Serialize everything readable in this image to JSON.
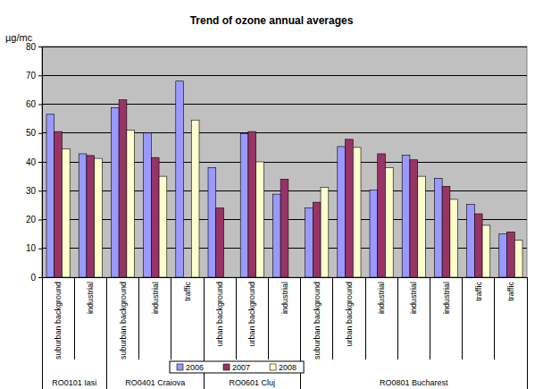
{
  "chart_data": {
    "type": "bar",
    "title": "Trend of ozone annual averages",
    "y_label": "µg/mc",
    "categories": [
      "suburban background",
      "industrial",
      "suburban background",
      "industrial",
      "traffic",
      "urban background",
      "urban background",
      "industrial",
      "suburban background",
      "urban background",
      "industrial",
      "industrial",
      "industrial",
      "traffic",
      "traffic"
    ],
    "groups": [
      {
        "label": "RO0101 Iasi",
        "count": 2
      },
      {
        "label": "RO0401 Craiova",
        "count": 3
      },
      {
        "label": "RO0601 Cluj",
        "count": 3
      },
      {
        "label": "RO0801 Bucharest",
        "count": 7
      }
    ],
    "series": [
      {
        "name": "2006",
        "color": "#9999ff",
        "values": [
          56.5,
          42.8,
          58.8,
          50,
          68,
          38,
          49.8,
          28.8,
          24,
          45.3,
          30.2,
          42.3,
          34.3,
          25.3,
          15
        ]
      },
      {
        "name": "2007",
        "color": "#993366",
        "values": [
          50.5,
          42.2,
          61.5,
          41.5,
          null,
          24,
          50.5,
          34,
          26,
          47.8,
          42.8,
          40.7,
          31.5,
          22,
          15.7
        ]
      },
      {
        "name": "2008",
        "color": "#ffffcc",
        "values": [
          44.5,
          41.2,
          51,
          35,
          54.5,
          null,
          40,
          null,
          31.2,
          45,
          38,
          35,
          27,
          18,
          12.8
        ]
      }
    ],
    "ylim": [
      0,
      80
    ],
    "yticks": [
      0,
      10,
      20,
      30,
      40,
      50,
      60,
      70,
      80
    ],
    "grid": true,
    "legend": "bottom"
  }
}
